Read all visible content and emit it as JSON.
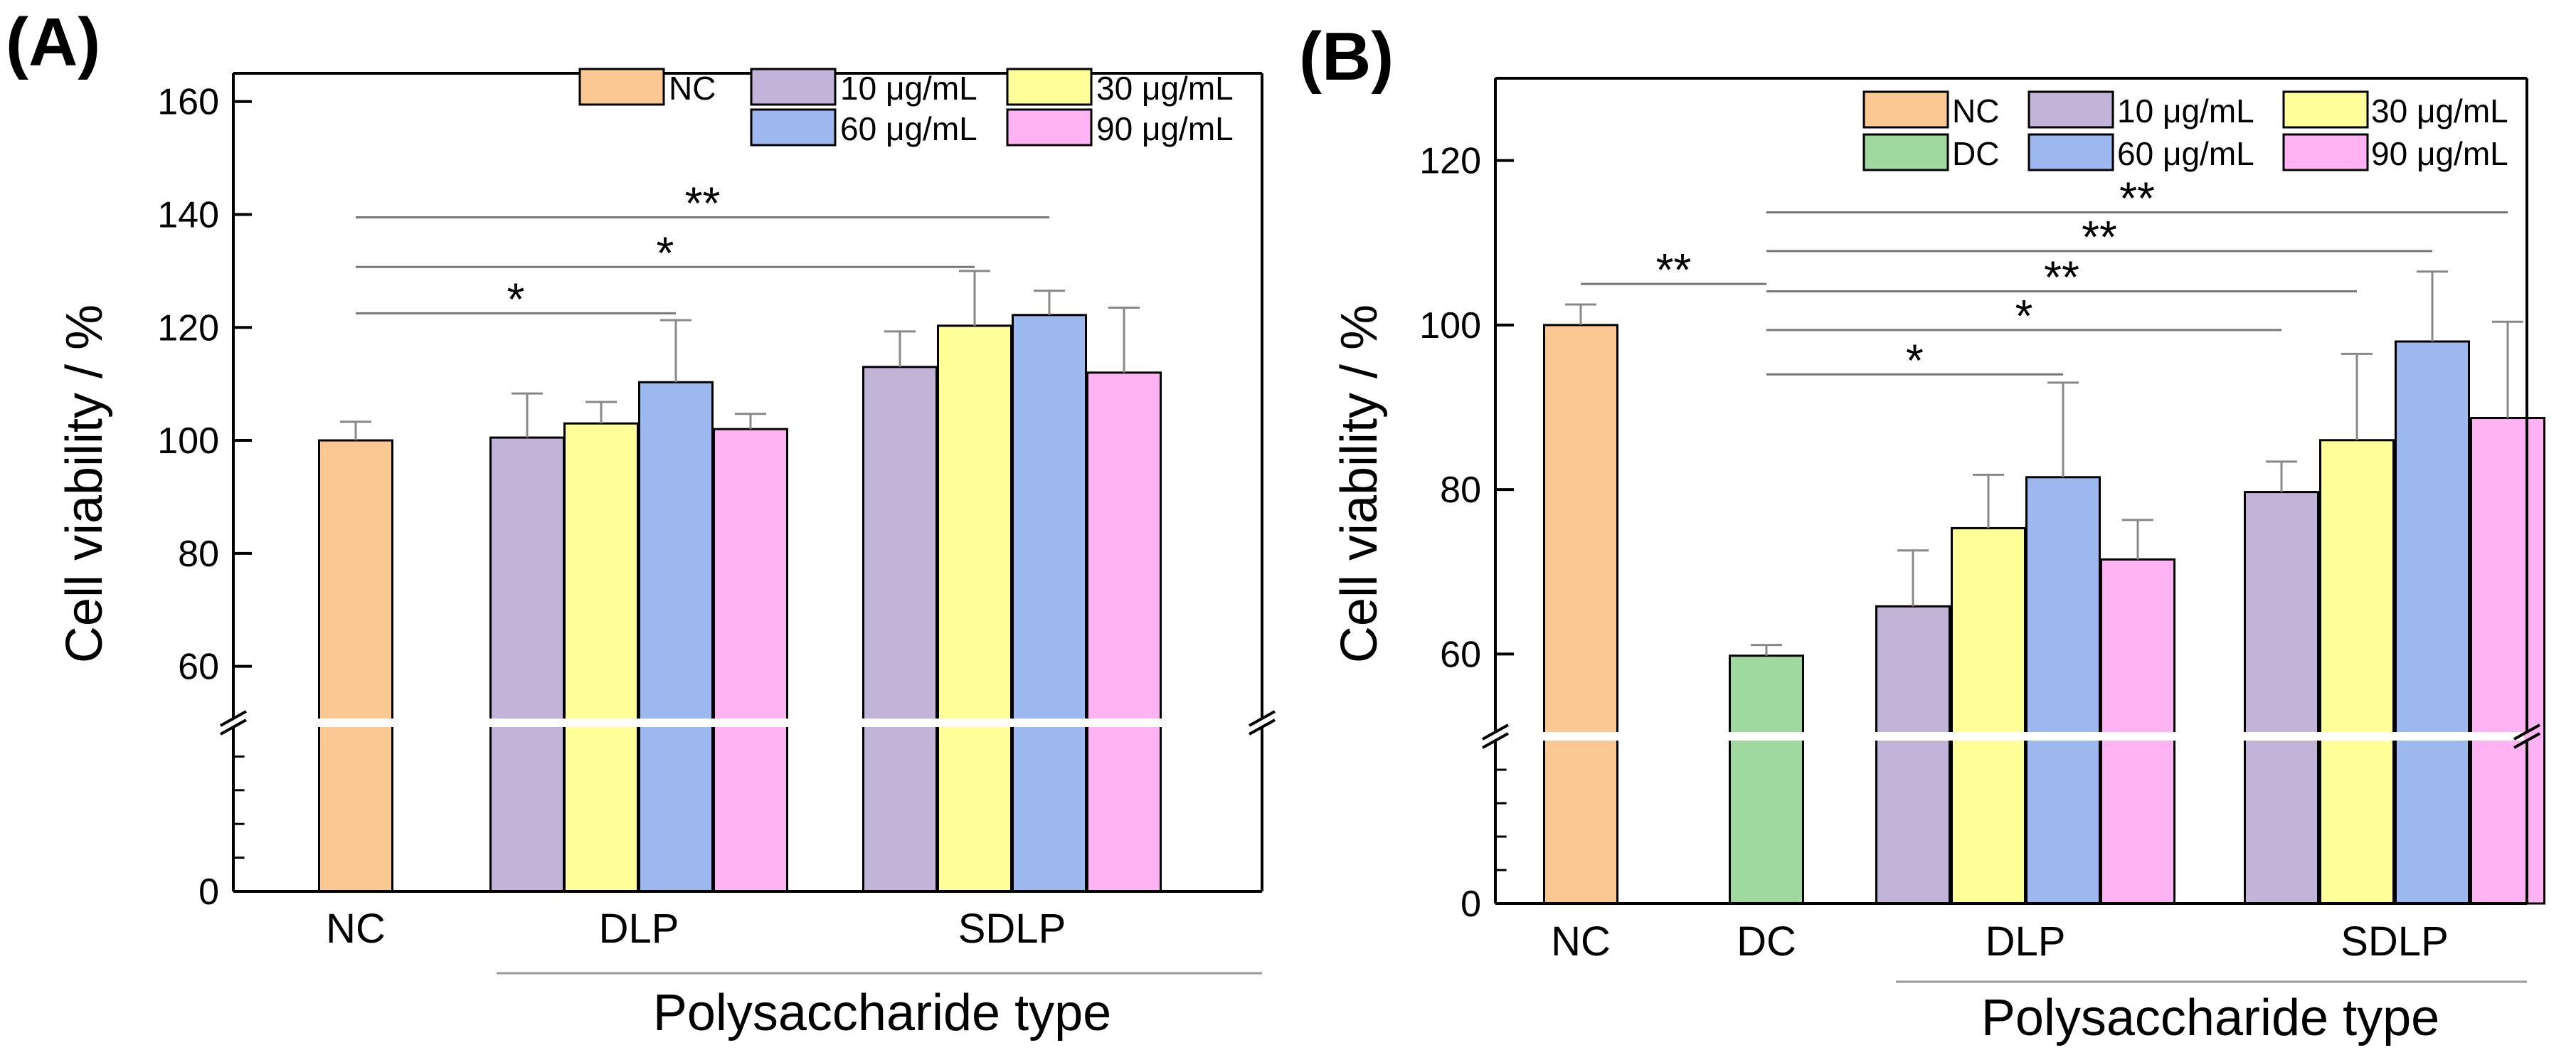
{
  "figure": {
    "panel_labels": [
      "(A)",
      "(B)"
    ]
  },
  "chart_data": [
    {
      "type": "bar",
      "panel": "(A)",
      "title": "",
      "xlabel": "Polysaccharide type",
      "ylabel": "Cell viability / %",
      "axis_break": true,
      "ylim": [
        0,
        165
      ],
      "yticks": [
        0,
        60,
        80,
        100,
        120,
        140,
        160
      ],
      "ytick_labels": [
        "0",
        "60",
        "80",
        "100",
        "120",
        "140",
        "160"
      ],
      "groups": [
        {
          "label": "NC",
          "bars": [
            {
              "series": "NC",
              "value": 100,
              "error": 3.3
            }
          ]
        },
        {
          "label": "DLP",
          "bars": [
            {
              "series": "10 μg/mL",
              "value": 100.5,
              "error": 7.8
            },
            {
              "series": "30 μg/mL",
              "value": 103,
              "error": 3.8
            },
            {
              "series": "60 μg/mL",
              "value": 110.3,
              "error": 11.0
            },
            {
              "series": "90 μg/mL",
              "value": 102,
              "error": 2.7
            }
          ]
        },
        {
          "label": "SDLP",
          "bars": [
            {
              "series": "10 μg/mL",
              "value": 113,
              "error": 6.3
            },
            {
              "series": "30 μg/mL",
              "value": 120.3,
              "error": 9.7
            },
            {
              "series": "60 μg/mL",
              "value": 122.2,
              "error": 4.3
            },
            {
              "series": "90 μg/mL",
              "value": 112,
              "error": 11.5
            }
          ]
        }
      ],
      "legend": {
        "placement": "top-right",
        "entries": [
          {
            "label": "NC",
            "color": "#fbc793"
          },
          {
            "label": "10 μg/mL",
            "color": "#c2b3d8"
          },
          {
            "label": "30 μg/mL",
            "color": "#ffff99"
          },
          {
            "label": "60 μg/mL",
            "color": "#9db7ef"
          },
          {
            "label": "90 μg/mL",
            "color": "#ffb3f2"
          }
        ]
      },
      "significance": [
        {
          "from_group": 0,
          "from_bar": 0,
          "to_group": 1,
          "to_bar": 2,
          "label": "*",
          "level": 122.5
        },
        {
          "from_group": 0,
          "from_bar": 0,
          "to_group": 2,
          "to_bar": 1,
          "label": "*",
          "level": 130.7
        },
        {
          "from_group": 0,
          "from_bar": 0,
          "to_group": 2,
          "to_bar": 2,
          "label": "**",
          "level": 139.5
        }
      ]
    },
    {
      "type": "bar",
      "panel": "(B)",
      "title": "",
      "xlabel": "Polysaccharide type",
      "ylabel": "Cell viability / %",
      "axis_break": true,
      "ylim": [
        0,
        130
      ],
      "yticks": [
        0,
        60,
        80,
        100,
        120
      ],
      "ytick_labels": [
        "0",
        "60",
        "80",
        "100",
        "120"
      ],
      "groups": [
        {
          "label": "NC",
          "bars": [
            {
              "series": "NC",
              "value": 100,
              "error": 2.5
            }
          ]
        },
        {
          "label": "DC",
          "bars": [
            {
              "series": "DC",
              "value": 59.8,
              "error": 1.3
            }
          ]
        },
        {
          "label": "DLP",
          "bars": [
            {
              "series": "10 μg/mL",
              "value": 65.8,
              "error": 6.8
            },
            {
              "series": "30 μg/mL",
              "value": 75.3,
              "error": 6.5
            },
            {
              "series": "60 μg/mL",
              "value": 81.5,
              "error": 11.5
            },
            {
              "series": "90 μg/mL",
              "value": 71.5,
              "error": 4.8
            }
          ]
        },
        {
          "label": "SDLP",
          "bars": [
            {
              "series": "10 μg/mL",
              "value": 79.7,
              "error": 3.7
            },
            {
              "series": "30 μg/mL",
              "value": 86,
              "error": 10.5
            },
            {
              "series": "60 μg/mL",
              "value": 98,
              "error": 8.5
            },
            {
              "series": "90 μg/mL",
              "value": 88.7,
              "error": 11.7
            }
          ]
        }
      ],
      "legend": {
        "placement": "top-right",
        "entries": [
          {
            "label": "NC",
            "color": "#fbc793"
          },
          {
            "label": "DC",
            "color": "#9fd99f"
          },
          {
            "label": "10 μg/mL",
            "color": "#c2b3d8"
          },
          {
            "label": "60 μg/mL",
            "color": "#9db7ef"
          },
          {
            "label": "30 μg/mL",
            "color": "#ffff99"
          },
          {
            "label": "90 μg/mL",
            "color": "#ffb3f2"
          }
        ]
      },
      "significance": [
        {
          "from_group": 0,
          "from_bar": 0,
          "to_group": 1,
          "to_bar": 0,
          "label": "**",
          "level": 105
        },
        {
          "from_group": 1,
          "from_bar": 0,
          "to_group": 2,
          "to_bar": 2,
          "label": "*",
          "level": 94
        },
        {
          "from_group": 1,
          "from_bar": 0,
          "to_group": 3,
          "to_bar": 0,
          "label": "*",
          "level": 99.4
        },
        {
          "from_group": 1,
          "from_bar": 0,
          "to_group": 3,
          "to_bar": 1,
          "label": "**",
          "level": 104.1
        },
        {
          "from_group": 1,
          "from_bar": 0,
          "to_group": 3,
          "to_bar": 2,
          "label": "**",
          "level": 109.0
        },
        {
          "from_group": 1,
          "from_bar": 0,
          "to_group": 3,
          "to_bar": 3,
          "label": "**",
          "level": 113.7
        }
      ]
    }
  ]
}
